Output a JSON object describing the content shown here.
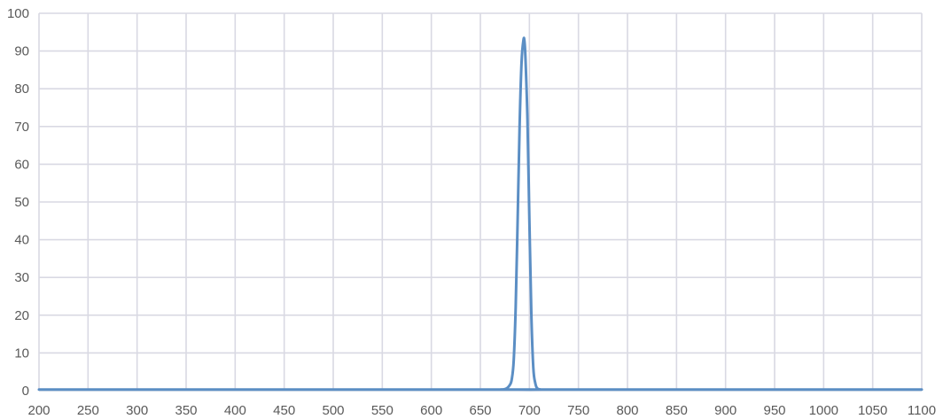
{
  "chart_data": {
    "type": "line",
    "title": "",
    "xlabel": "",
    "ylabel": "",
    "xlim": [
      200,
      1100
    ],
    "ylim": [
      0,
      100
    ],
    "x_ticks": [
      200,
      250,
      300,
      350,
      400,
      450,
      500,
      550,
      600,
      650,
      700,
      750,
      800,
      850,
      900,
      950,
      1000,
      1050,
      1100
    ],
    "y_ticks": [
      0,
      10,
      20,
      30,
      40,
      50,
      60,
      70,
      80,
      90,
      100
    ],
    "grid": true,
    "legend": "none",
    "series": [
      {
        "color": "#5b8ec4",
        "points": [
          [
            200,
            0.3
          ],
          [
            660,
            0.3
          ],
          [
            670,
            0.3
          ],
          [
            676,
            0.5
          ],
          [
            680,
            1.5
          ],
          [
            682,
            3
          ],
          [
            684,
            8
          ],
          [
            686,
            22
          ],
          [
            688,
            45
          ],
          [
            690,
            70
          ],
          [
            692,
            87
          ],
          [
            694,
            93
          ],
          [
            695,
            92.5
          ],
          [
            696,
            88
          ],
          [
            698,
            72
          ],
          [
            700,
            45
          ],
          [
            702,
            20
          ],
          [
            704,
            6
          ],
          [
            706,
            2
          ],
          [
            708,
            0.6
          ],
          [
            712,
            0.3
          ],
          [
            720,
            0.3
          ],
          [
            1100,
            0.3
          ]
        ]
      }
    ]
  }
}
